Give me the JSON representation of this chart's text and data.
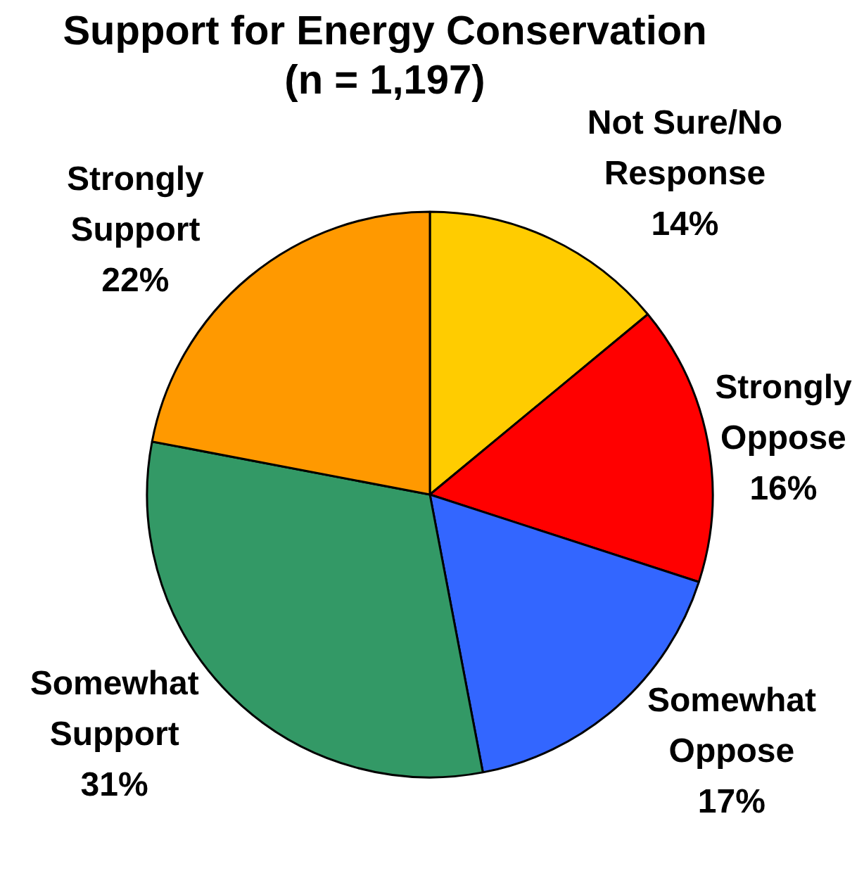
{
  "chart_data": {
    "type": "pie",
    "title": "Support for Energy Conservation",
    "subtitle": "(n = 1,197)",
    "categories": [
      "Not Sure/No Response",
      "Strongly Oppose",
      "Somewhat Oppose",
      "Somewhat Support",
      "Strongly Support"
    ],
    "values": [
      14,
      16,
      17,
      31,
      22
    ],
    "value_labels": [
      "14%",
      "16%",
      "17%",
      "31%",
      "22%"
    ],
    "colors": [
      "#ffcc00",
      "#ff0000",
      "#3366ff",
      "#339966",
      "#ff9900"
    ]
  }
}
